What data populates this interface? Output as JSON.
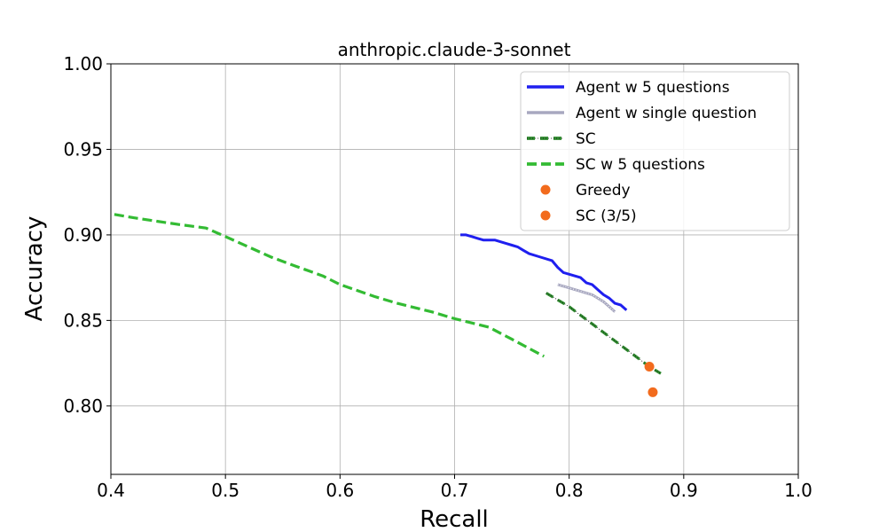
{
  "chart_data": {
    "type": "line",
    "title": "anthropic.claude-3-sonnet",
    "xlabel": "Recall",
    "ylabel": "Accuracy",
    "xlim": [
      0.4,
      1.0
    ],
    "ylim": [
      0.76,
      1.0
    ],
    "xticks": [
      0.4,
      0.5,
      0.6,
      0.7,
      0.8,
      0.9,
      1.0
    ],
    "xtick_labels": [
      "0.4",
      "0.5",
      "0.6",
      "0.7",
      "0.8",
      "0.9",
      "1.0"
    ],
    "yticks": [
      0.8,
      0.85,
      0.9,
      0.95,
      1.0
    ],
    "ytick_labels": [
      "0.80",
      "0.85",
      "0.90",
      "0.95",
      "1.00"
    ],
    "grid": true,
    "legend_position": "top-right",
    "series": [
      {
        "name": "Agent w 5 questions",
        "kind": "line",
        "style": "solid",
        "color": "#1f1fef",
        "points": [
          [
            0.705,
            0.9
          ],
          [
            0.71,
            0.9
          ],
          [
            0.715,
            0.899
          ],
          [
            0.72,
            0.898
          ],
          [
            0.725,
            0.897
          ],
          [
            0.735,
            0.897
          ],
          [
            0.745,
            0.895
          ],
          [
            0.75,
            0.894
          ],
          [
            0.755,
            0.893
          ],
          [
            0.76,
            0.891
          ],
          [
            0.765,
            0.889
          ],
          [
            0.775,
            0.887
          ],
          [
            0.785,
            0.885
          ],
          [
            0.79,
            0.881
          ],
          [
            0.795,
            0.878
          ],
          [
            0.8,
            0.877
          ],
          [
            0.805,
            0.876
          ],
          [
            0.81,
            0.875
          ],
          [
            0.815,
            0.872
          ],
          [
            0.82,
            0.871
          ],
          [
            0.825,
            0.868
          ],
          [
            0.83,
            0.865
          ],
          [
            0.835,
            0.863
          ],
          [
            0.84,
            0.86
          ],
          [
            0.845,
            0.859
          ],
          [
            0.85,
            0.856
          ]
        ]
      },
      {
        "name": "Agent w single question",
        "kind": "line",
        "style": "dotted",
        "color": "#a8a8c0",
        "points": [
          [
            0.79,
            0.871
          ],
          [
            0.8,
            0.869
          ],
          [
            0.81,
            0.867
          ],
          [
            0.82,
            0.865
          ],
          [
            0.83,
            0.861
          ],
          [
            0.835,
            0.858
          ],
          [
            0.84,
            0.855
          ]
        ]
      },
      {
        "name": "SC",
        "kind": "line",
        "style": "dashed-dotted",
        "color": "#2e8b2e",
        "points": [
          [
            0.78,
            0.866
          ],
          [
            0.79,
            0.862
          ],
          [
            0.8,
            0.858
          ],
          [
            0.81,
            0.853
          ],
          [
            0.82,
            0.848
          ],
          [
            0.83,
            0.843
          ],
          [
            0.84,
            0.838
          ],
          [
            0.85,
            0.833
          ],
          [
            0.86,
            0.828
          ],
          [
            0.87,
            0.823
          ],
          [
            0.88,
            0.819
          ]
        ]
      },
      {
        "name": "SC w 5 questions",
        "kind": "line",
        "style": "dashed",
        "color": "#33bb33",
        "points": [
          [
            0.403,
            0.912
          ],
          [
            0.42,
            0.91
          ],
          [
            0.44,
            0.908
          ],
          [
            0.46,
            0.906
          ],
          [
            0.483,
            0.904
          ],
          [
            0.5,
            0.899
          ],
          [
            0.52,
            0.893
          ],
          [
            0.54,
            0.887
          ],
          [
            0.56,
            0.882
          ],
          [
            0.585,
            0.876
          ],
          [
            0.6,
            0.871
          ],
          [
            0.63,
            0.864
          ],
          [
            0.65,
            0.86
          ],
          [
            0.68,
            0.855
          ],
          [
            0.7,
            0.851
          ],
          [
            0.73,
            0.846
          ],
          [
            0.75,
            0.839
          ],
          [
            0.778,
            0.829
          ]
        ]
      },
      {
        "name": "Greedy",
        "kind": "scatter",
        "color": "#f26b1d",
        "points": [
          [
            0.87,
            0.823
          ]
        ]
      },
      {
        "name": "SC (3/5)",
        "kind": "scatter",
        "color": "#f26b1d",
        "points": [
          [
            0.873,
            0.808
          ]
        ]
      }
    ]
  }
}
